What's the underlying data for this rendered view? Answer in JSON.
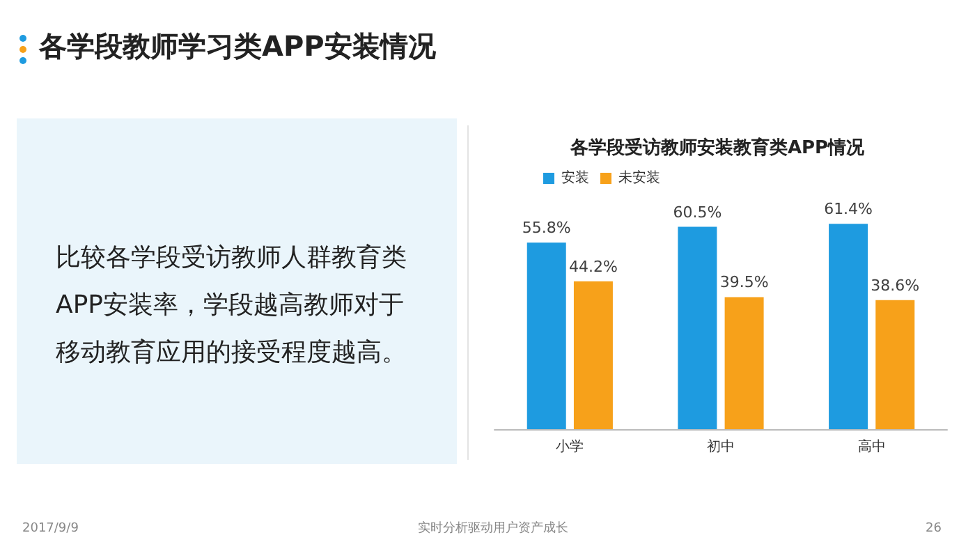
{
  "chart_data": {
    "type": "bar",
    "title": "各学段教师学习类APP安装情况",
    "subtitle": "各学段受访教师安装教育类APP情况",
    "categories": [
      "小学",
      "初中",
      "高中"
    ],
    "series": [
      {
        "name": "安装",
        "color": "#1e9be0",
        "values": [
          55.8,
          60.5,
          61.4
        ],
        "value_labels": [
          "55.8%",
          "60.5%",
          "61.4%"
        ]
      },
      {
        "name": "未安装",
        "color": "#f7a11a",
        "values": [
          44.2,
          39.5,
          38.6
        ],
        "value_labels": [
          "44.2%",
          "39.5%",
          "38.6%"
        ]
      }
    ],
    "legend": "top",
    "annotations": [
      "比较各学段受访教师人群教育类APP安装率，学段越高教师对于移动教育应用的接受程度越高。",
      "2017/9/9",
      "实时分析驱动用户资产成长",
      "26"
    ]
  }
}
